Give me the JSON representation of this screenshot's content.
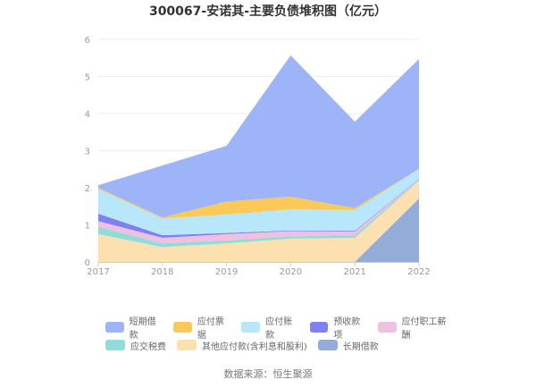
{
  "title": "300067-安诺其-主要负债堆积图（亿元）",
  "source": "数据来源：恒生聚源",
  "chart_data": {
    "type": "area",
    "stacked": true,
    "title": "300067-安诺其-主要负债堆积图（亿元）",
    "xlabel": "",
    "ylabel": "",
    "x": [
      "2017",
      "2018",
      "2019",
      "2020",
      "2021",
      "2022"
    ],
    "ylim": [
      0,
      6
    ],
    "yticks": [
      0,
      1,
      2,
      3,
      4,
      5,
      6
    ],
    "grid": true,
    "legend_position": "bottom",
    "series": [
      {
        "name": "长期借款",
        "color": "#93add8",
        "values": [
          0,
          0,
          0,
          0,
          0,
          1.71
        ]
      },
      {
        "name": "其他应付款(含利息和股利)",
        "color": "#fde0b0",
        "values": [
          0.75,
          0.4,
          0.5,
          0.63,
          0.65,
          0.48
        ]
      },
      {
        "name": "应交税费",
        "color": "#90dcd8",
        "values": [
          0.2,
          0.1,
          0.08,
          0.06,
          0.07,
          0.02
        ]
      },
      {
        "name": "应付职工薪酬",
        "color": "#efc0e0",
        "values": [
          0.15,
          0.15,
          0.17,
          0.14,
          0.1,
          0.02
        ]
      },
      {
        "name": "预收款项",
        "color": "#8080f0",
        "values": [
          0.2,
          0.07,
          0.03,
          0.02,
          0.02,
          0.01
        ]
      },
      {
        "name": "应付账款",
        "color": "#b8e6fa",
        "values": [
          0.67,
          0.45,
          0.5,
          0.57,
          0.56,
          0.26
        ]
      },
      {
        "name": "应付票据",
        "color": "#fbc957",
        "values": [
          0.03,
          0.03,
          0.35,
          0.34,
          0.05,
          0.01
        ]
      },
      {
        "name": "短期借款",
        "color": "#9db5f8",
        "values": [
          0.07,
          1.4,
          1.5,
          3.81,
          2.33,
          2.96
        ]
      }
    ],
    "totals": [
      2.07,
      2.6,
      3.13,
      5.57,
      3.78,
      5.47
    ]
  },
  "legend": {
    "row1": [
      {
        "label": "短期借款",
        "color": "#9db5f8"
      },
      {
        "label": "应付票据",
        "color": "#fbc957"
      },
      {
        "label": "应付账款",
        "color": "#b8e6fa"
      },
      {
        "label": "预收款项",
        "color": "#8080f0"
      },
      {
        "label": "应付职工薪酬",
        "color": "#efc0e0"
      }
    ],
    "row2": [
      {
        "label": "应交税费",
        "color": "#90dcd8"
      },
      {
        "label": "其他应付款(含利息和股利)",
        "color": "#fde0b0"
      },
      {
        "label": "长期借款",
        "color": "#93add8"
      }
    ]
  }
}
